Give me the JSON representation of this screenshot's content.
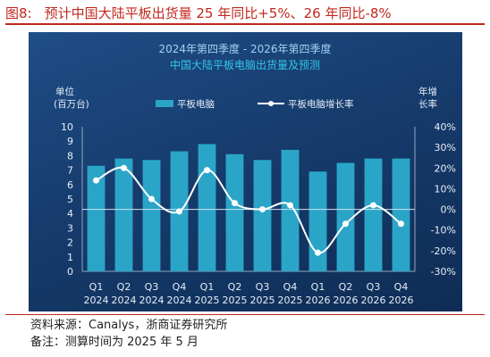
{
  "figure": {
    "number": "图8:",
    "title": "预计中国大陆平板出货量 25 年同比+5%、26 年同比-8%",
    "source": "资料来源：Canalys，浙商证券研究所",
    "note": "备注：测算时间为 2025 年 5 月"
  },
  "chart_data": {
    "type": "bar",
    "title": "2024年第四季度 - 2026年第四季度",
    "subtitle": "中国大陆平板电脑出货量及预测",
    "ylabel": "单位(百万台)",
    "y2label": "年增长率",
    "categories": [
      "Q1 2024",
      "Q2 2024",
      "Q3 2024",
      "Q4 2024",
      "Q1 2025",
      "Q2 2025",
      "Q3 2025",
      "Q4 2025",
      "Q1 2026",
      "Q2 2026",
      "Q3 2026",
      "Q4 2026"
    ],
    "category_quarters": [
      "Q1",
      "Q2",
      "Q3",
      "Q4",
      "Q1",
      "Q2",
      "Q3",
      "Q4",
      "Q1",
      "Q2",
      "Q3",
      "Q4"
    ],
    "category_years": [
      "2024",
      "2024",
      "2024",
      "2024",
      "2025",
      "2025",
      "2025",
      "2025",
      "2026",
      "2026",
      "2026",
      "2026"
    ],
    "series": [
      {
        "name": "平板电脑",
        "type": "bar",
        "axis": "left",
        "values": [
          7.3,
          7.8,
          7.7,
          8.3,
          8.8,
          8.1,
          7.7,
          8.4,
          6.9,
          7.5,
          7.8,
          7.8
        ]
      },
      {
        "name": "平板电脑增长率",
        "type": "line",
        "axis": "right",
        "unit": "%",
        "values": [
          14,
          20,
          5,
          -1,
          19,
          3,
          0,
          2,
          -21,
          -7,
          2,
          -7
        ]
      }
    ],
    "ylim": [
      0,
      10
    ],
    "y_ticks": [
      "0",
      "1",
      "2",
      "3",
      "4",
      "5",
      "6",
      "7",
      "8",
      "9",
      "10"
    ],
    "y2lim": [
      -30,
      40
    ],
    "y2_ticks": [
      "-30%",
      "-20%",
      "-10%",
      "0%",
      "10%",
      "20%",
      "30%",
      "40%"
    ],
    "legend_position": "top",
    "grid": false,
    "colors": {
      "bar": "#2aa5c7",
      "line": "#ffffff",
      "zero_line": "#cfe3f3",
      "title": "#9fd3f2",
      "subtitle": "#33c6e6",
      "text": "#e6eef7"
    }
  }
}
